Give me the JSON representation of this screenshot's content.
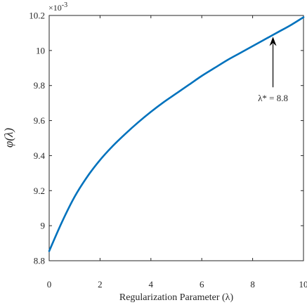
{
  "chart_data": {
    "type": "line",
    "title": "",
    "xlabel": "Regularization Parameter (λ)",
    "ylabel": "φ(λ)",
    "y_exponent_label": "×10",
    "y_exponent_power": "-3",
    "xlim": [
      0,
      10
    ],
    "ylim": [
      8.8,
      10.2
    ],
    "x_ticks": [
      0,
      2,
      4,
      6,
      8,
      10
    ],
    "x_tick_labels": [
      "0",
      "2",
      "4",
      "6",
      "8",
      "10"
    ],
    "y_ticks": [
      8.8,
      9,
      9.2,
      9.4,
      9.6,
      9.8,
      10,
      10.2
    ],
    "y_tick_labels": [
      "8.8",
      "9",
      "9.2",
      "9.4",
      "9.6",
      "9.8",
      "10",
      "10.2"
    ],
    "grid": false,
    "series": [
      {
        "color": "#0072BD",
        "x": [
          0,
          0.5,
          1,
          1.5,
          2,
          2.5,
          3,
          3.5,
          4,
          4.5,
          5,
          5.5,
          6,
          6.5,
          7,
          7.5,
          8,
          8.5,
          9,
          9.5,
          10
        ],
        "y": [
          8.855,
          9.02,
          9.165,
          9.28,
          9.375,
          9.455,
          9.525,
          9.59,
          9.65,
          9.705,
          9.755,
          9.805,
          9.855,
          9.9,
          9.945,
          9.985,
          10.025,
          10.065,
          10.105,
          10.145,
          10.19
        ]
      }
    ],
    "annotation": {
      "text": "λ* = 8.8",
      "x": 8.8,
      "y": 10.09
    }
  }
}
